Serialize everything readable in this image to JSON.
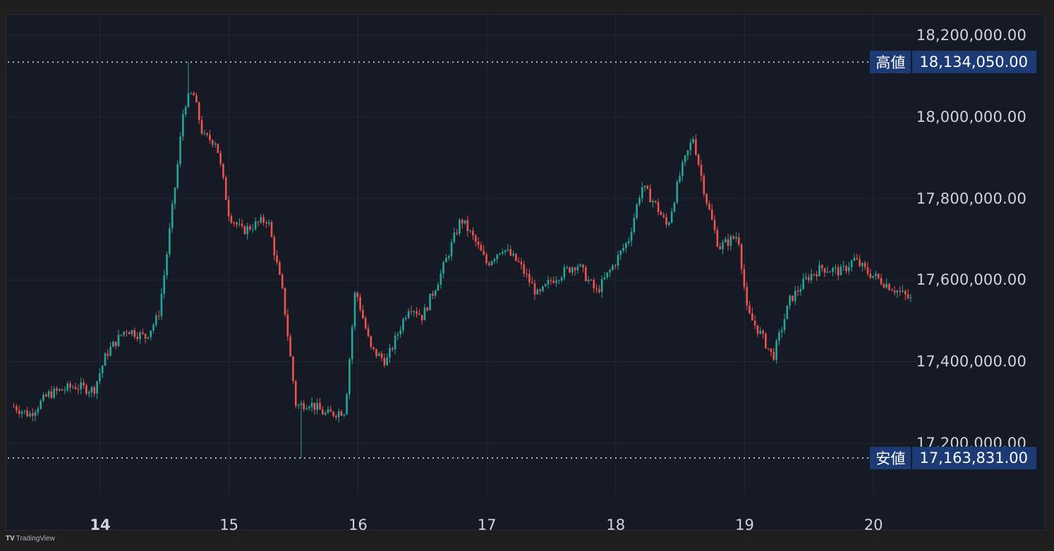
{
  "chart_data": {
    "type": "candlestick",
    "colors": {
      "up": "#26a69a",
      "down": "#ef5350",
      "background": "#161a25",
      "grid": "#232733",
      "level_line": "#b2b5be",
      "tag_bg": "#1c3a74"
    },
    "x_ticks": [
      "14",
      "15",
      "16",
      "17",
      "18",
      "19",
      "20"
    ],
    "x_range": [
      13.33,
      20.3
    ],
    "y_ticks": [
      "18,200,000.00",
      "18,000,000.00",
      "17,800,000.00",
      "17,600,000.00",
      "17,400,000.00",
      "17,200,000.00"
    ],
    "ylim": [
      17050000,
      18240000
    ],
    "y_tick_values": [
      18200000,
      18000000,
      17800000,
      17600000,
      17400000,
      17200000
    ],
    "high": {
      "label": "高値",
      "value": 18134050,
      "value_text": "18,134,050.00",
      "x": 14.68
    },
    "low": {
      "label": "安値",
      "value": 17163831,
      "value_text": "17,163,831.00",
      "x": 15.55
    },
    "anchors": [
      [
        13.33,
        17290000
      ],
      [
        13.45,
        17270000
      ],
      [
        13.6,
        17320000
      ],
      [
        13.8,
        17340000
      ],
      [
        13.95,
        17330000
      ],
      [
        14.05,
        17420000
      ],
      [
        14.2,
        17480000
      ],
      [
        14.35,
        17460000
      ],
      [
        14.45,
        17510000
      ],
      [
        14.5,
        17620000
      ],
      [
        14.6,
        17880000
      ],
      [
        14.65,
        18030000
      ],
      [
        14.72,
        18060000
      ],
      [
        14.8,
        17950000
      ],
      [
        14.9,
        17940000
      ],
      [
        15.0,
        17760000
      ],
      [
        15.1,
        17720000
      ],
      [
        15.3,
        17750000
      ],
      [
        15.42,
        17560000
      ],
      [
        15.52,
        17290000
      ],
      [
        15.62,
        17300000
      ],
      [
        15.75,
        17270000
      ],
      [
        15.9,
        17280000
      ],
      [
        15.98,
        17580000
      ],
      [
        16.1,
        17430000
      ],
      [
        16.22,
        17400000
      ],
      [
        16.4,
        17540000
      ],
      [
        16.5,
        17510000
      ],
      [
        16.65,
        17620000
      ],
      [
        16.8,
        17750000
      ],
      [
        16.9,
        17700000
      ],
      [
        17.0,
        17640000
      ],
      [
        17.12,
        17680000
      ],
      [
        17.25,
        17640000
      ],
      [
        17.4,
        17560000
      ],
      [
        17.5,
        17600000
      ],
      [
        17.7,
        17640000
      ],
      [
        17.85,
        17570000
      ],
      [
        17.95,
        17620000
      ],
      [
        18.1,
        17700000
      ],
      [
        18.2,
        17830000
      ],
      [
        18.3,
        17790000
      ],
      [
        18.4,
        17730000
      ],
      [
        18.5,
        17860000
      ],
      [
        18.6,
        17950000
      ],
      [
        18.7,
        17800000
      ],
      [
        18.8,
        17680000
      ],
      [
        18.95,
        17710000
      ],
      [
        19.02,
        17520000
      ],
      [
        19.12,
        17470000
      ],
      [
        19.22,
        17410000
      ],
      [
        19.35,
        17550000
      ],
      [
        19.5,
        17610000
      ],
      [
        19.6,
        17630000
      ],
      [
        19.75,
        17620000
      ],
      [
        19.85,
        17650000
      ],
      [
        19.95,
        17620000
      ],
      [
        20.05,
        17600000
      ],
      [
        20.15,
        17580000
      ],
      [
        20.3,
        17550000
      ]
    ]
  },
  "branding": {
    "name": "TradingView"
  }
}
